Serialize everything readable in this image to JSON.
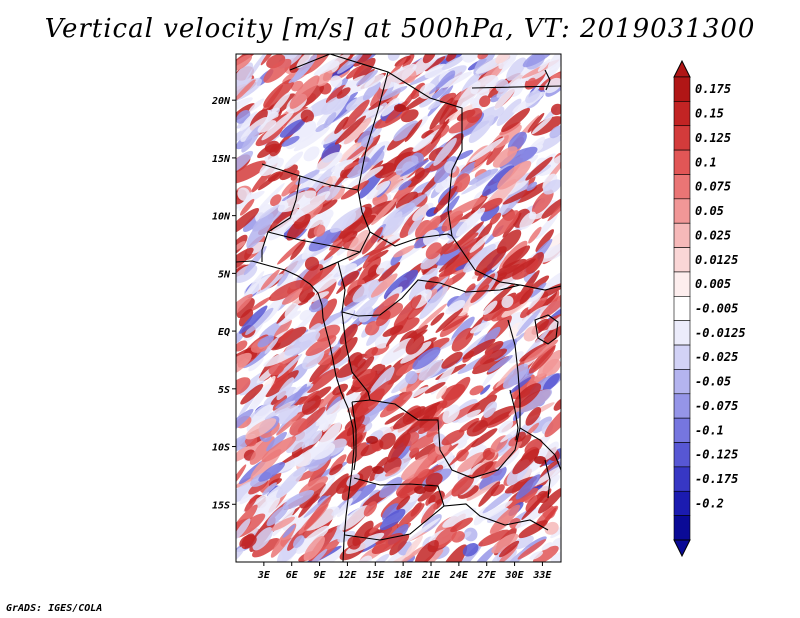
{
  "title": "Vertical velocity [m/s] at 500hPa, VT: 2019031300",
  "footer": "GrADS: IGES/COLA",
  "map": {
    "lon_range": [
      0,
      35
    ],
    "lat_range": [
      -20,
      24
    ],
    "lat_labels": [
      "20N",
      "15N",
      "10N",
      "5N",
      "EQ",
      "5S",
      "10S",
      "15S"
    ],
    "lat_values": [
      20,
      15,
      10,
      5,
      0,
      -5,
      -10,
      -15
    ],
    "lon_labels": [
      "3E",
      "6E",
      "9E",
      "12E",
      "15E",
      "18E",
      "21E",
      "24E",
      "27E",
      "30E",
      "33E"
    ],
    "lon_values": [
      3,
      6,
      9,
      12,
      15,
      18,
      21,
      24,
      27,
      30,
      33
    ]
  },
  "colorbar": {
    "labels": [
      "0.175",
      "0.15",
      "0.125",
      "0.1",
      "0.075",
      "0.05",
      "0.025",
      "0.0125",
      "0.005",
      "-0.005",
      "-0.0125",
      "-0.025",
      "-0.05",
      "-0.075",
      "-0.1",
      "-0.125",
      "-0.175",
      "-0.2"
    ],
    "colors": [
      "#b01616",
      "#c22424",
      "#d33b3b",
      "#e15656",
      "#ea7575",
      "#f19797",
      "#f6b9b9",
      "#fad6d6",
      "#fdeeee",
      "#ffffff",
      "#ececfb",
      "#d2d2f6",
      "#b4b4ef",
      "#9595e8",
      "#7676df",
      "#5757d4",
      "#3737c4",
      "#1b1bb0",
      "#0a0a96"
    ]
  }
}
